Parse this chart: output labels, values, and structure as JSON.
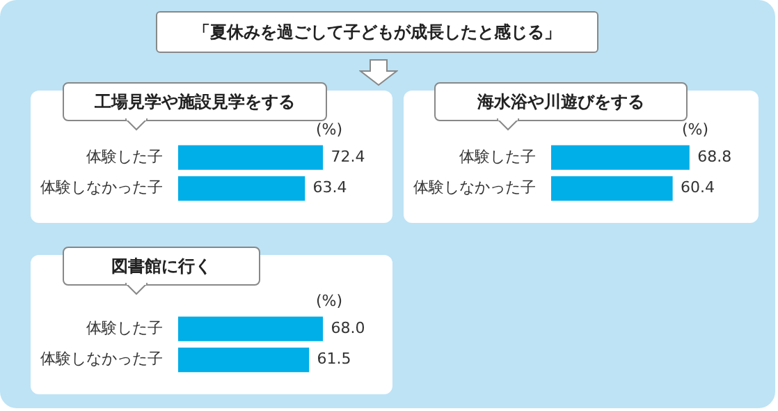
{
  "chart_data": [
    {
      "type": "bar",
      "orientation": "horizontal",
      "title": "工場見学や施設見学をする",
      "categories": [
        "体験した子",
        "体験しなかった子"
      ],
      "values": [
        72.4,
        63.4
      ],
      "color": "#00aee8",
      "data_labels": true,
      "annotations": [
        "「夏休みを過ごして子どもが成長したと感じる」",
        "(%)"
      ]
    },
    {
      "type": "bar",
      "orientation": "horizontal",
      "title": "海水浴や川遊びをする",
      "categories": [
        "体験した子",
        "体験しなかった子"
      ],
      "values": [
        68.8,
        60.4
      ],
      "color": "#00aee8",
      "data_labels": true,
      "annotations": [
        "(%)"
      ]
    },
    {
      "type": "bar",
      "orientation": "horizontal",
      "title": "図書館に行く",
      "categories": [
        "体験した子",
        "体験しなかった子"
      ],
      "values": [
        68.0,
        61.5
      ],
      "value_labels": [
        "68.0",
        "61.5"
      ],
      "color": "#00aee8",
      "annotations": [
        "(%)"
      ]
    }
  ]
}
